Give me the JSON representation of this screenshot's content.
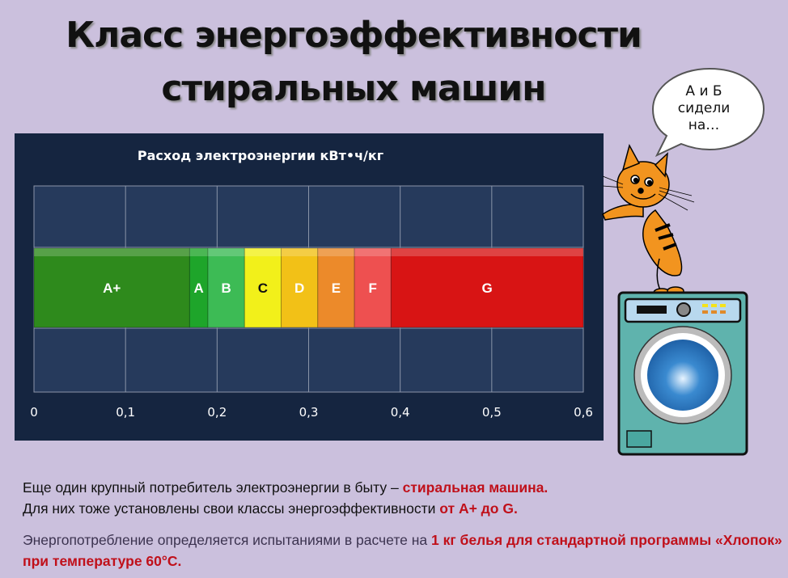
{
  "title": {
    "line1": "Класс энергоэффективности",
    "line2": "стиральных машин"
  },
  "speech_bubble": {
    "line1": "А и Б",
    "line2": "сидели",
    "line3": "на…"
  },
  "chart_data": {
    "type": "bar",
    "orientation": "horizontal-stacked",
    "title": "Расход электроэнергии кВт•ч/кг",
    "xlim": [
      0,
      0.6
    ],
    "xticks": [
      "0",
      "0,1",
      "0,2",
      "0,3",
      "0,4",
      "0,5",
      "0,6"
    ],
    "grid": true,
    "segments": [
      {
        "label": "A+",
        "start": 0,
        "end": 0.17,
        "color": "#2e8a1c"
      },
      {
        "label": "A",
        "start": 0.17,
        "end": 0.19,
        "color": "#1ea52a"
      },
      {
        "label": "B",
        "start": 0.19,
        "end": 0.23,
        "color": "#3dbb55"
      },
      {
        "label": "C",
        "start": 0.23,
        "end": 0.27,
        "color": "#f2f01a"
      },
      {
        "label": "D",
        "start": 0.27,
        "end": 0.31,
        "color": "#f2c117"
      },
      {
        "label": "E",
        "start": 0.31,
        "end": 0.35,
        "color": "#ec8a2a"
      },
      {
        "label": "F",
        "start": 0.35,
        "end": 0.39,
        "color": "#ee5050"
      },
      {
        "label": "G",
        "start": 0.39,
        "end": 0.6,
        "color": "#d81414"
      }
    ]
  },
  "text": {
    "p1_a": "Еще один крупный потребитель электроэнергии в быту – ",
    "p1_b": "стиральная машина.",
    "p1_c": "Для них тоже установлены свои классы энергоэффективности ",
    "p1_d": "от А+ до G.",
    "p2_a": "Энергопотребление определяется испытаниями в расчете на ",
    "p2_b": "1 кг белья для стандартной программы «Хлопок» при температуре 60°С."
  }
}
